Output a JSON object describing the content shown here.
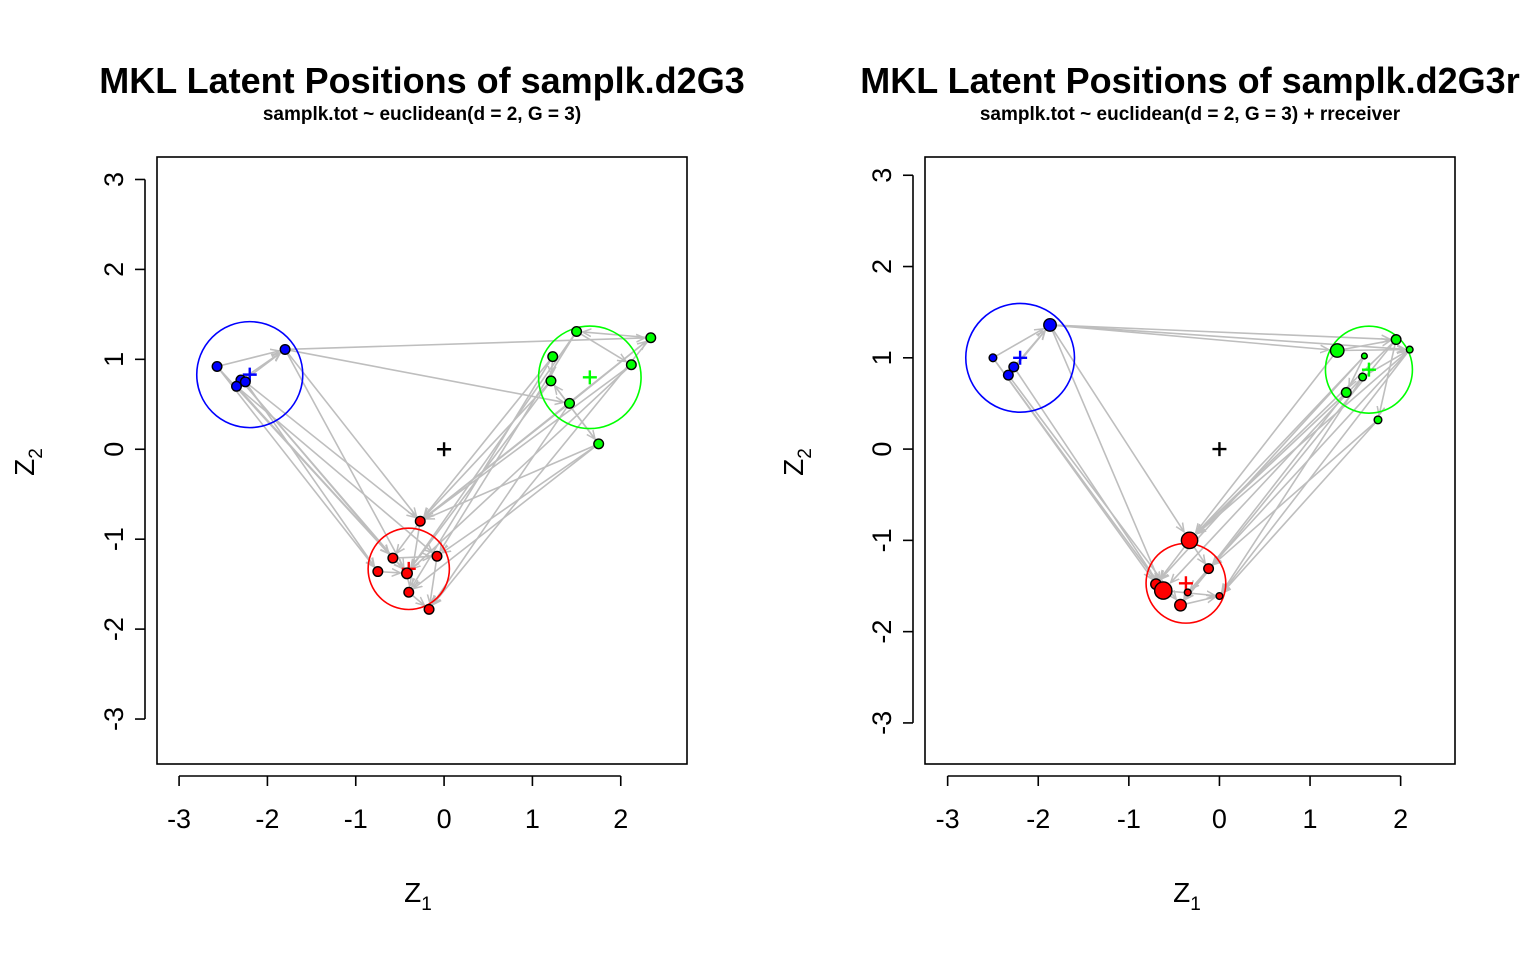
{
  "chart_data": [
    {
      "type": "scatter",
      "title": "MKL Latent Positions of samplk.d2G3",
      "subtitle": "samplk.tot ~ euclidean(d = 2, G = 3)",
      "xlabel": "Z",
      "xlabel_sub": "1",
      "ylabel": "Z",
      "ylabel_sub": "2",
      "xlim": [
        -3.25,
        2.75
      ],
      "ylim": [
        -3.5,
        3.25
      ],
      "xticks": [
        -3,
        -2,
        -1,
        0,
        1,
        2
      ],
      "xtick_labels": [
        "-3",
        "-2",
        "-1",
        "0",
        "1",
        "2"
      ],
      "yticks": [
        -3,
        -2,
        -1,
        0,
        1,
        2,
        3
      ],
      "ytick_labels": [
        "-3",
        "-2",
        "-1",
        "0",
        "1",
        "2",
        "3"
      ],
      "overall_center": {
        "x": 0,
        "y": 0,
        "color": "#000000"
      },
      "clusters": [
        {
          "name": "blue",
          "color": "#0000ff",
          "center": [
            -2.2,
            0.83
          ],
          "radius": 0.6
        },
        {
          "name": "green",
          "color": "#00ff00",
          "center": [
            1.65,
            0.8
          ],
          "radius": 0.58
        },
        {
          "name": "red",
          "color": "#ff0000",
          "center": [
            -0.4,
            -1.33
          ],
          "radius": 0.46
        }
      ],
      "points": [
        {
          "x": -2.57,
          "y": 0.92,
          "c": "blue",
          "s": 1
        },
        {
          "x": -1.8,
          "y": 1.11,
          "c": "blue",
          "s": 1
        },
        {
          "x": -2.3,
          "y": 0.77,
          "c": "blue",
          "s": 1
        },
        {
          "x": -2.35,
          "y": 0.7,
          "c": "blue",
          "s": 1
        },
        {
          "x": -2.25,
          "y": 0.75,
          "c": "blue",
          "s": 1
        },
        {
          "x": 1.5,
          "y": 1.31,
          "c": "green",
          "s": 1
        },
        {
          "x": 2.34,
          "y": 1.24,
          "c": "green",
          "s": 1
        },
        {
          "x": 1.23,
          "y": 1.03,
          "c": "green",
          "s": 1
        },
        {
          "x": 2.12,
          "y": 0.94,
          "c": "green",
          "s": 1
        },
        {
          "x": 1.21,
          "y": 0.76,
          "c": "green",
          "s": 1
        },
        {
          "x": 1.42,
          "y": 0.51,
          "c": "green",
          "s": 1
        },
        {
          "x": 1.75,
          "y": 0.06,
          "c": "green",
          "s": 1
        },
        {
          "x": -0.27,
          "y": -0.8,
          "c": "red",
          "s": 1
        },
        {
          "x": -0.58,
          "y": -1.21,
          "c": "red",
          "s": 1
        },
        {
          "x": -0.08,
          "y": -1.19,
          "c": "red",
          "s": 1
        },
        {
          "x": -0.75,
          "y": -1.36,
          "c": "red",
          "s": 1
        },
        {
          "x": -0.42,
          "y": -1.38,
          "c": "red",
          "s": 1.1
        },
        {
          "x": -0.4,
          "y": -1.59,
          "c": "red",
          "s": 1
        },
        {
          "x": -0.17,
          "y": -1.78,
          "c": "red",
          "s": 1
        }
      ],
      "edges": [
        [
          1,
          6
        ],
        [
          1,
          10
        ],
        [
          1,
          12
        ],
        [
          0,
          13
        ],
        [
          0,
          15
        ],
        [
          2,
          16
        ],
        [
          3,
          14
        ],
        [
          4,
          12
        ],
        [
          2,
          1
        ],
        [
          3,
          1
        ],
        [
          0,
          1
        ],
        [
          1,
          16
        ],
        [
          11,
          12
        ],
        [
          11,
          14
        ],
        [
          11,
          17
        ],
        [
          10,
          12
        ],
        [
          9,
          12
        ],
        [
          9,
          16
        ],
        [
          8,
          16
        ],
        [
          7,
          12
        ],
        [
          5,
          16
        ],
        [
          6,
          12
        ],
        [
          6,
          18
        ],
        [
          5,
          8
        ],
        [
          7,
          9
        ],
        [
          9,
          11
        ],
        [
          10,
          6
        ],
        [
          6,
          5
        ],
        [
          12,
          13
        ],
        [
          13,
          14
        ],
        [
          15,
          16
        ],
        [
          17,
          18
        ],
        [
          14,
          18
        ],
        [
          12,
          17
        ],
        [
          8,
          12
        ],
        [
          10,
          18
        ],
        [
          5,
          14
        ],
        [
          7,
          17
        ],
        [
          4,
          15
        ],
        [
          2,
          13
        ],
        [
          3,
          16
        ],
        [
          11,
          9
        ]
      ]
    },
    {
      "type": "scatter",
      "title": "MKL Latent Positions of samplk.d2G3r",
      "subtitle": "samplk.tot ~ euclidean(d = 2, G = 3) + rreceiver",
      "xlabel": "Z",
      "xlabel_sub": "1",
      "ylabel": "Z",
      "ylabel_sub": "2",
      "xlim": [
        -3.25,
        2.6
      ],
      "ylim": [
        -3.45,
        3.2
      ],
      "xticks": [
        -3,
        -2,
        -1,
        0,
        1,
        2
      ],
      "xtick_labels": [
        "-3",
        "-2",
        "-1",
        "0",
        "1",
        "2"
      ],
      "yticks": [
        -3,
        -2,
        -1,
        0,
        1,
        2,
        3
      ],
      "ytick_labels": [
        "-3",
        "-2",
        "-1",
        "0",
        "1",
        "2",
        "3"
      ],
      "overall_center": {
        "x": 0,
        "y": 0,
        "color": "#000000"
      },
      "clusters": [
        {
          "name": "blue",
          "color": "#0000ff",
          "center": [
            -2.2,
            1.0
          ],
          "radius": 0.6
        },
        {
          "name": "green",
          "color": "#00ff00",
          "center": [
            1.65,
            0.87
          ],
          "radius": 0.48
        },
        {
          "name": "red",
          "color": "#ff0000",
          "center": [
            -0.37,
            -1.47
          ],
          "radius": 0.44
        }
      ],
      "points": [
        {
          "x": -2.5,
          "y": 1.0,
          "c": "blue",
          "s": 0.8
        },
        {
          "x": -1.87,
          "y": 1.36,
          "c": "blue",
          "s": 1.3
        },
        {
          "x": -2.27,
          "y": 0.9,
          "c": "blue",
          "s": 1
        },
        {
          "x": -2.33,
          "y": 0.81,
          "c": "blue",
          "s": 1
        },
        {
          "x": 1.3,
          "y": 1.08,
          "c": "green",
          "s": 1.4
        },
        {
          "x": 1.95,
          "y": 1.2,
          "c": "green",
          "s": 1
        },
        {
          "x": 2.1,
          "y": 1.09,
          "c": "green",
          "s": 0.7
        },
        {
          "x": 1.6,
          "y": 1.02,
          "c": "green",
          "s": 0.6
        },
        {
          "x": 1.58,
          "y": 0.79,
          "c": "green",
          "s": 0.8
        },
        {
          "x": 1.4,
          "y": 0.62,
          "c": "green",
          "s": 1
        },
        {
          "x": 1.75,
          "y": 0.32,
          "c": "green",
          "s": 0.8
        },
        {
          "x": -0.33,
          "y": -1.0,
          "c": "red",
          "s": 1.7
        },
        {
          "x": -0.7,
          "y": -1.48,
          "c": "red",
          "s": 1.1
        },
        {
          "x": -0.62,
          "y": -1.55,
          "c": "red",
          "s": 1.8
        },
        {
          "x": -0.12,
          "y": -1.31,
          "c": "red",
          "s": 1
        },
        {
          "x": -0.35,
          "y": -1.57,
          "c": "red",
          "s": 0.7
        },
        {
          "x": -0.43,
          "y": -1.71,
          "c": "red",
          "s": 1.2
        },
        {
          "x": 0.0,
          "y": -1.61,
          "c": "red",
          "s": 0.7
        }
      ],
      "edges": [
        [
          1,
          4
        ],
        [
          1,
          5
        ],
        [
          1,
          6
        ],
        [
          0,
          12
        ],
        [
          0,
          13
        ],
        [
          2,
          13
        ],
        [
          3,
          16
        ],
        [
          2,
          1
        ],
        [
          3,
          1
        ],
        [
          0,
          1
        ],
        [
          1,
          11
        ],
        [
          1,
          13
        ],
        [
          4,
          11
        ],
        [
          5,
          11
        ],
        [
          6,
          11
        ],
        [
          6,
          14
        ],
        [
          6,
          17
        ],
        [
          7,
          12
        ],
        [
          8,
          13
        ],
        [
          9,
          11
        ],
        [
          10,
          14
        ],
        [
          10,
          17
        ],
        [
          5,
          16
        ],
        [
          4,
          6
        ],
        [
          7,
          9
        ],
        [
          5,
          10
        ],
        [
          11,
          12
        ],
        [
          12,
          13
        ],
        [
          14,
          15
        ],
        [
          15,
          16
        ],
        [
          16,
          17
        ],
        [
          13,
          17
        ],
        [
          11,
          14
        ],
        [
          9,
          16
        ],
        [
          8,
          17
        ],
        [
          7,
          11
        ],
        [
          4,
          5
        ],
        [
          8,
          6
        ]
      ]
    }
  ]
}
